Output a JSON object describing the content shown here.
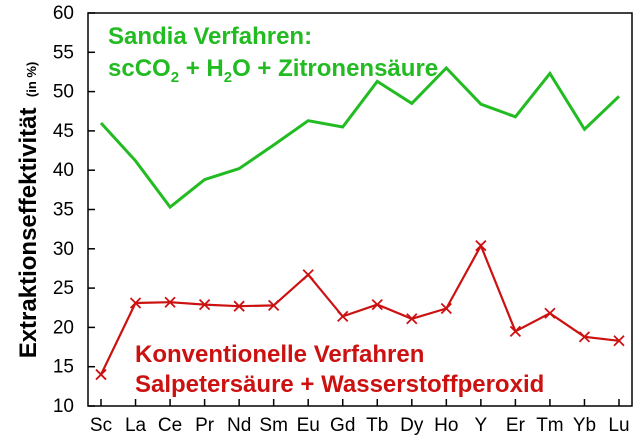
{
  "chart_data": {
    "type": "line",
    "categories": [
      "Sc",
      "La",
      "Ce",
      "Pr",
      "Nd",
      "Sm",
      "Eu",
      "Gd",
      "Tb",
      "Dy",
      "Ho",
      "Y",
      "Er",
      "Tm",
      "Yb",
      "Lu"
    ],
    "ylabel": "Extraktionseffektivität",
    "ylabel_unit": "(in %)",
    "ylim": [
      10,
      60
    ],
    "yticks": [
      10,
      15,
      20,
      25,
      30,
      35,
      40,
      45,
      50,
      55,
      60
    ],
    "grid": false,
    "series": [
      {
        "color": "#22bb22",
        "marker": "none",
        "values": [
          46.0,
          41.2,
          35.3,
          38.8,
          40.2,
          43.2,
          46.3,
          45.5,
          51.3,
          48.5,
          53.0,
          48.4,
          46.8,
          52.3,
          45.2,
          49.4
        ],
        "annotation": {
          "line1": "Sandia Verfahren:",
          "line2_parts": [
            "scCO",
            "2",
            " + H",
            "2",
            "O + Zitronensäure"
          ]
        }
      },
      {
        "color": "#cc1111",
        "marker": "x",
        "values": [
          14.0,
          23.1,
          23.2,
          22.9,
          22.7,
          22.8,
          26.7,
          21.4,
          22.9,
          21.1,
          22.4,
          30.4,
          19.5,
          21.8,
          18.8,
          18.3
        ],
        "annotation": {
          "line1": "Konventionelle Verfahren",
          "line2": "Salpetersäure + Wasserstoffperoxid"
        }
      }
    ]
  }
}
